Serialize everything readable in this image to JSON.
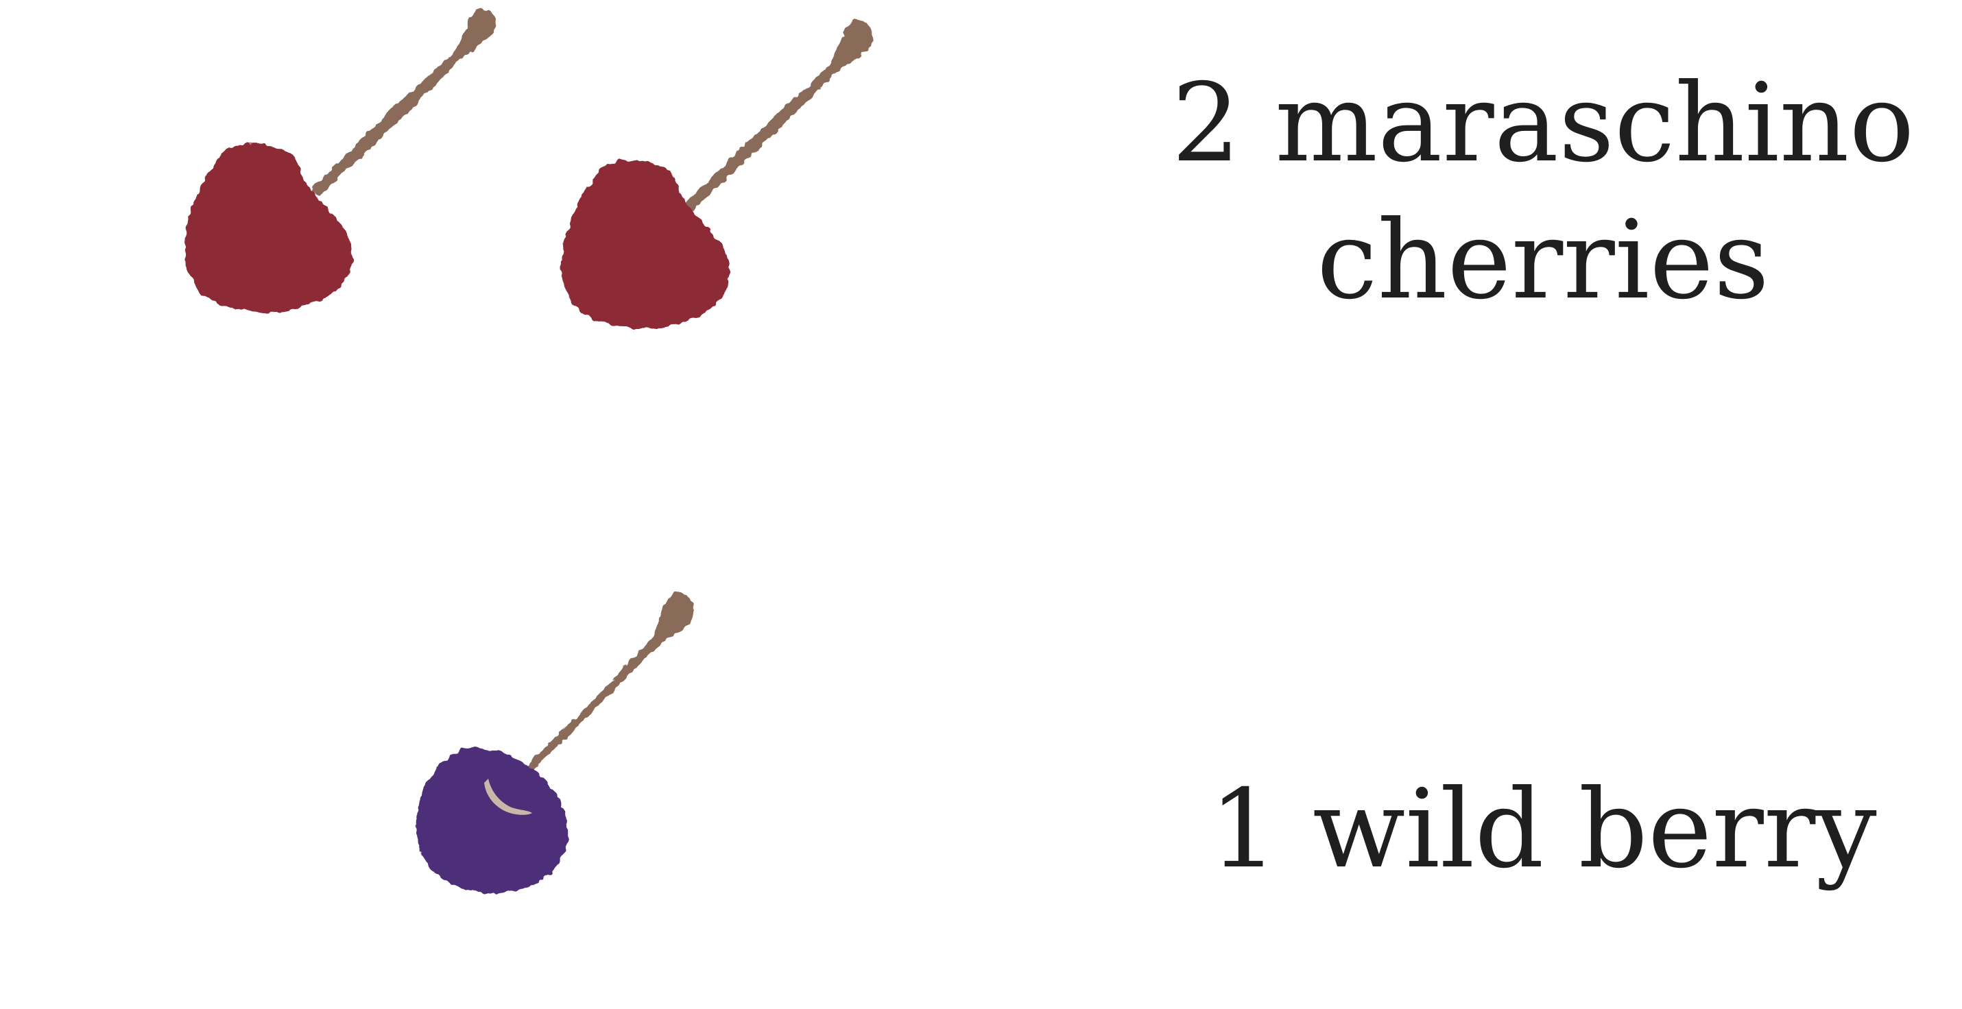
{
  "items": [
    {
      "kind": "cherry",
      "quantity": 2,
      "label_line1": "2 maraschino",
      "label_line2": "cherries",
      "fruit_color": "#8c2a35",
      "stem_color": "#8a6b58"
    },
    {
      "kind": "wild-berry",
      "quantity": 1,
      "label_line1": "1 wild berry",
      "fruit_color": "#4e2e78",
      "stem_color": "#8a6b58",
      "highlight_color": "#c9b8aa"
    }
  ],
  "colors": {
    "background": "#ffffff",
    "text": "#1f1f1f"
  }
}
